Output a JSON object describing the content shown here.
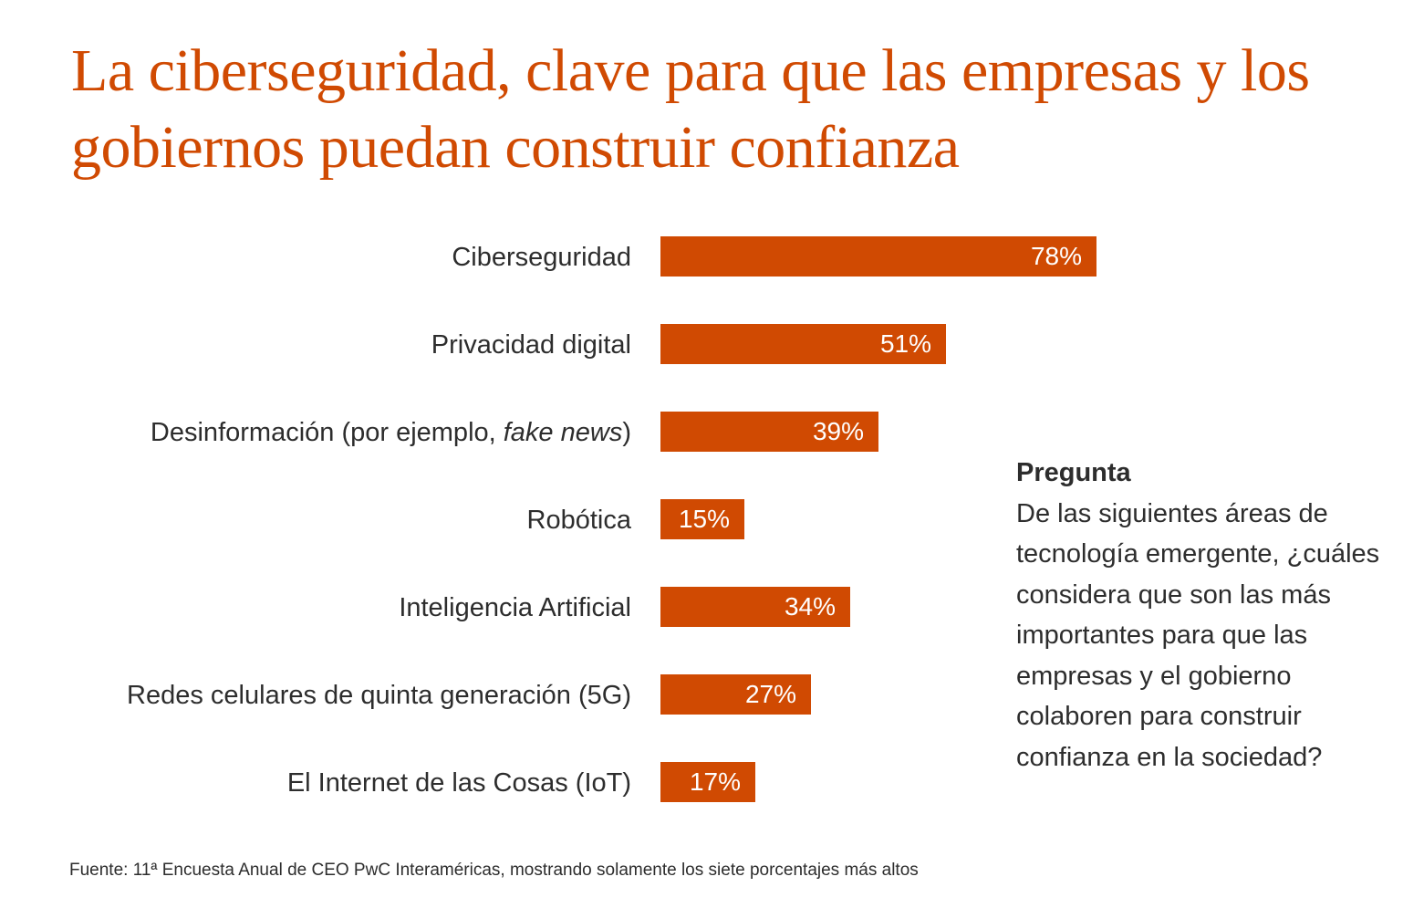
{
  "title": "La ciberseguridad, clave para que las empresas y los gobiernos puedan construir confianza",
  "colors": {
    "accent": "#d04a02",
    "text": "#2d2d2d",
    "bar_label": "#ffffff"
  },
  "chart_data": {
    "type": "bar",
    "orientation": "horizontal",
    "title": "La ciberseguridad, clave para que las empresas y los gobiernos puedan construir confianza",
    "categories": [
      "Ciberseguridad",
      "Privacidad digital",
      "Desinformación (por ejemplo, fake news)",
      "Robótica",
      "Inteligencia Artificial",
      "Redes celulares de quinta generación (5G)",
      "El Internet de las Cosas (IoT)"
    ],
    "category_labels": [
      {
        "text": "Ciberseguridad"
      },
      {
        "text": "Privacidad digital"
      },
      {
        "text": "Desinformación (por ejemplo, ",
        "italic": "fake news",
        "suffix": ")"
      },
      {
        "text": "Robótica"
      },
      {
        "text": "Inteligencia Artificial"
      },
      {
        "text": "Redes celulares de quinta generación (5G)"
      },
      {
        "text": "El Internet de las Cosas (IoT)"
      }
    ],
    "values": [
      78,
      51,
      39,
      15,
      34,
      27,
      17
    ],
    "value_labels": [
      "78%",
      "51%",
      "39%",
      "15%",
      "34%",
      "27%",
      "17%"
    ],
    "unit": "%",
    "xlim": [
      0,
      100
    ],
    "xlabel": "",
    "ylabel": "",
    "grid": false,
    "legend": null
  },
  "question": {
    "heading": "Pregunta",
    "text": "De las siguientes áreas de tecnología emergente, ¿cuáles considera que son las más importantes para que las empresas y el gobierno colaboren para construir confianza en la sociedad?"
  },
  "source": "Fuente: 11ª Encuesta Anual de CEO PwC Interaméricas, mostrando solamente los siete porcentajes más altos"
}
